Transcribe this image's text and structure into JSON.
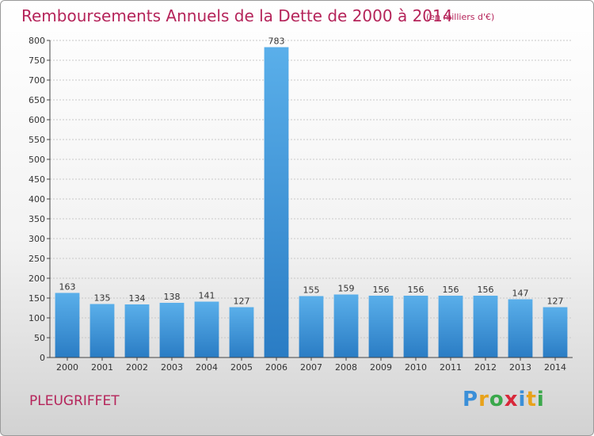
{
  "title": "Remboursements Annuels de la Dette de 2000 à 2014",
  "unit": "(en milliers d'€)",
  "commune": "PLEUGRIFFET",
  "logo": {
    "letters": [
      {
        "ch": "P",
        "color": "#3a8fd8"
      },
      {
        "ch": "r",
        "color": "#e8a21a"
      },
      {
        "ch": "o",
        "color": "#3aa84b"
      },
      {
        "ch": "x",
        "color": "#d8283a"
      },
      {
        "ch": "i",
        "color": "#3a8fd8"
      },
      {
        "ch": "t",
        "color": "#e8a21a"
      },
      {
        "ch": "i",
        "color": "#3aa84b"
      }
    ]
  },
  "chart_data": {
    "type": "bar",
    "categories": [
      "2000",
      "2001",
      "2002",
      "2003",
      "2004",
      "2005",
      "2006",
      "2007",
      "2008",
      "2009",
      "2010",
      "2011",
      "2012",
      "2013",
      "2014"
    ],
    "values": [
      163,
      135,
      134,
      138,
      141,
      127,
      783,
      155,
      159,
      156,
      156,
      156,
      156,
      147,
      127
    ],
    "ylim": [
      0,
      800
    ],
    "yticks": [
      0,
      50,
      100,
      150,
      200,
      250,
      300,
      350,
      400,
      450,
      500,
      550,
      600,
      650,
      700,
      750,
      800
    ],
    "grid": true,
    "bar_color": "#3f97df",
    "data_labels": true
  }
}
